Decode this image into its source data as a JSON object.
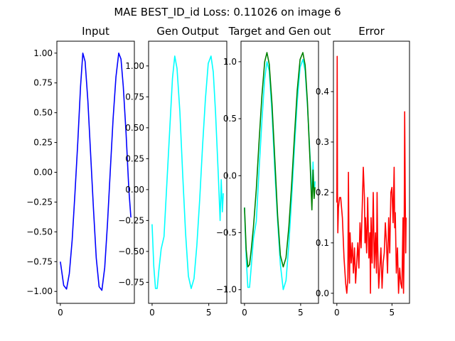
{
  "figure": {
    "suptitle": "MAE BEST_ID_id Loss: 0.11026 on image 6"
  },
  "chart_data": [
    {
      "type": "line",
      "title": "Input",
      "xlim": [
        -0.31,
        6.59
      ],
      "ylim": [
        -1.1,
        1.1
      ],
      "xticks": [
        0
      ],
      "xtick_labels": [
        "0"
      ],
      "yticks": [
        1.0,
        0.75,
        0.5,
        0.25,
        0.0,
        -0.25,
        -0.5,
        -0.75,
        -1.0
      ],
      "ytick_labels": [
        "1.00",
        "0.75",
        "0.50",
        "0.25",
        "0.00",
        "−0.25",
        "−0.50",
        "−0.75",
        "−1.00"
      ],
      "series": [
        {
          "color": "#0000ff",
          "x": [
            0.0,
            0.3,
            0.55,
            0.8,
            1.05,
            1.3,
            1.55,
            1.8,
            2.0,
            2.2,
            2.45,
            2.7,
            2.95,
            3.2,
            3.45,
            3.7,
            3.95,
            4.2,
            4.45,
            4.7,
            4.95,
            5.2,
            5.4,
            5.6,
            5.85,
            6.1,
            6.28
          ],
          "y": [
            -0.75,
            -0.95,
            -0.98,
            -0.85,
            -0.57,
            -0.18,
            0.25,
            0.72,
            1.0,
            0.93,
            0.6,
            0.15,
            -0.31,
            -0.72,
            -0.96,
            -0.99,
            -0.8,
            -0.43,
            0.02,
            0.45,
            0.8,
            1.0,
            0.95,
            0.72,
            0.33,
            -0.15,
            -0.38
          ]
        }
      ]
    },
    {
      "type": "line",
      "title": "Gen Output",
      "xlim": [
        -0.31,
        6.59
      ],
      "ylim": [
        -0.92,
        1.2
      ],
      "xticks": [
        0,
        5
      ],
      "xtick_labels": [
        "0",
        "5"
      ],
      "yticks": [
        1.0,
        0.75,
        0.5,
        0.25,
        0.0,
        -0.25,
        -0.5,
        -0.75
      ],
      "ytick_labels": [
        "1.00",
        "0.75",
        "0.50",
        "0.25",
        "0.00",
        "−0.25",
        "−0.50",
        "−0.75"
      ],
      "series": [
        {
          "color": "#00ffff",
          "x": [
            0.0,
            0.15,
            0.3,
            0.45,
            0.6,
            0.8,
            1.05,
            1.3,
            1.55,
            1.8,
            2.0,
            2.2,
            2.45,
            2.7,
            2.95,
            3.2,
            3.45,
            3.7,
            3.95,
            4.2,
            4.45,
            4.7,
            4.95,
            5.2,
            5.4,
            5.6,
            5.85,
            6.0,
            6.1,
            6.2,
            6.28
          ],
          "y": [
            -0.28,
            -0.62,
            -0.8,
            -0.8,
            -0.65,
            -0.48,
            -0.38,
            0.05,
            0.48,
            0.9,
            1.08,
            0.98,
            0.63,
            0.12,
            -0.35,
            -0.7,
            -0.8,
            -0.72,
            -0.45,
            -0.08,
            0.35,
            0.73,
            1.02,
            1.08,
            0.95,
            0.62,
            0.1,
            -0.25,
            0.08,
            -0.18,
            -0.03
          ]
        }
      ]
    },
    {
      "type": "line",
      "title": "Target and Gen out",
      "xlim": [
        -0.31,
        6.59
      ],
      "ylim": [
        -1.12,
        1.18
      ],
      "xticks": [
        0,
        5
      ],
      "xtick_labels": [
        "0",
        "5"
      ],
      "yticks": [
        1.0,
        0.5,
        0.0,
        -0.5,
        -1.0
      ],
      "ytick_labels": [
        "1.0",
        "0.5",
        "0.0",
        "−0.5",
        "−1.0"
      ],
      "series": [
        {
          "name": "",
          "color": "#00ffff",
          "x": [
            0.0,
            0.15,
            0.3,
            0.45,
            0.6,
            0.8,
            1.05,
            1.3,
            1.55,
            1.8,
            2.0,
            2.2,
            2.45,
            2.7,
            2.95,
            3.2,
            3.45,
            3.7,
            3.95,
            4.2,
            4.45,
            4.7,
            4.95,
            5.2,
            5.4,
            5.6,
            5.85,
            6.0,
            6.1,
            6.2,
            6.28
          ],
          "y": [
            -0.28,
            -0.72,
            -0.98,
            -0.98,
            -0.8,
            -0.55,
            -0.4,
            0.05,
            0.48,
            0.85,
            1.0,
            0.92,
            0.55,
            0.05,
            -0.4,
            -0.78,
            -1.0,
            -0.92,
            -0.6,
            -0.2,
            0.25,
            0.65,
            0.95,
            1.02,
            0.92,
            0.62,
            0.15,
            -0.2,
            0.12,
            -0.18,
            -0.05
          ]
        },
        {
          "name": "",
          "color": "#008000",
          "x": [
            0.0,
            0.15,
            0.3,
            0.45,
            0.6,
            0.8,
            1.05,
            1.3,
            1.55,
            1.8,
            2.0,
            2.2,
            2.45,
            2.7,
            2.95,
            3.2,
            3.45,
            3.7,
            3.95,
            4.2,
            4.45,
            4.7,
            4.95,
            5.2,
            5.4,
            5.6,
            5.85,
            6.0,
            6.1,
            6.2,
            6.28
          ],
          "y": [
            -0.28,
            -0.65,
            -0.8,
            -0.78,
            -0.65,
            -0.45,
            -0.12,
            0.3,
            0.7,
            1.0,
            1.08,
            0.98,
            0.63,
            0.15,
            -0.35,
            -0.7,
            -0.8,
            -0.72,
            -0.45,
            -0.08,
            0.35,
            0.75,
            1.02,
            1.08,
            0.97,
            0.65,
            0.1,
            -0.3,
            0.05,
            -0.2,
            -0.1
          ]
        }
      ]
    },
    {
      "type": "line",
      "title": "Error",
      "xlim": [
        -0.31,
        6.59
      ],
      "ylim": [
        -0.02,
        0.5
      ],
      "xticks": [
        0,
        5
      ],
      "xtick_labels": [
        "0",
        "5"
      ],
      "yticks": [
        0.4,
        0.3,
        0.2,
        0.1,
        0.0
      ],
      "ytick_labels": [
        "0.4",
        "0.3",
        "0.2",
        "0.1",
        "0.0"
      ],
      "series": [
        {
          "color": "#ff0000",
          "x": [
            0.0,
            0.03,
            0.06,
            0.09,
            0.15,
            0.25,
            0.35,
            0.5,
            0.65,
            0.8,
            0.9,
            1.0,
            1.05,
            1.1,
            1.15,
            1.2,
            1.3,
            1.4,
            1.5,
            1.6,
            1.7,
            1.8,
            1.9,
            2.0,
            2.1,
            2.2,
            2.3,
            2.4,
            2.45,
            2.5,
            2.55,
            2.6,
            2.7,
            2.8,
            2.9,
            3.0,
            3.05,
            3.1,
            3.2,
            3.3,
            3.4,
            3.5,
            3.6,
            3.65,
            3.7,
            3.8,
            3.9,
            4.0,
            4.1,
            4.2,
            4.3,
            4.4,
            4.5,
            4.6,
            4.7,
            4.8,
            4.9,
            5.0,
            5.1,
            5.2,
            5.25,
            5.3,
            5.4,
            5.5,
            5.6,
            5.7,
            5.8,
            5.9,
            6.0,
            6.05,
            6.1,
            6.15,
            6.2,
            6.25,
            6.28
          ],
          "y": [
            0.18,
            0.47,
            0.2,
            0.12,
            0.17,
            0.19,
            0.19,
            0.15,
            0.07,
            0.02,
            0.0,
            0.03,
            0.24,
            0.09,
            0.02,
            0.12,
            0.06,
            0.1,
            0.04,
            0.09,
            0.02,
            0.06,
            0.1,
            0.05,
            0.14,
            0.09,
            0.17,
            0.25,
            0.22,
            0.19,
            0.1,
            0.15,
            0.08,
            0.19,
            0.07,
            0.12,
            0.0,
            0.15,
            0.06,
            0.2,
            0.05,
            0.12,
            0.04,
            0.2,
            0.1,
            0.01,
            0.05,
            0.09,
            0.01,
            0.06,
            0.08,
            0.14,
            0.1,
            0.04,
            0.15,
            0.08,
            0.2,
            0.21,
            0.14,
            0.25,
            0.13,
            0.16,
            0.04,
            0.09,
            0.0,
            0.05,
            0.02,
            0.01,
            0.15,
            0.0,
            0.08,
            0.36,
            0.2,
            0.08,
            0.15
          ]
        }
      ]
    }
  ]
}
